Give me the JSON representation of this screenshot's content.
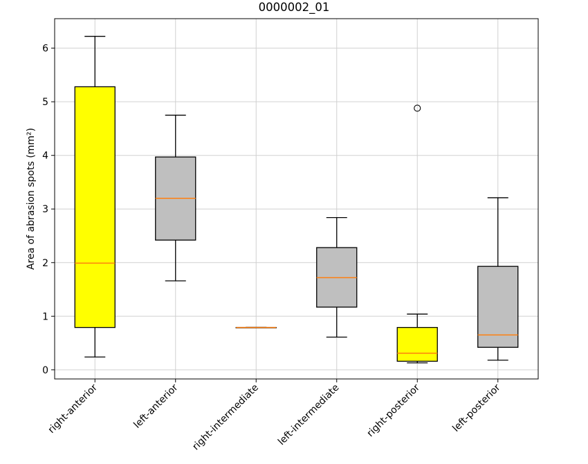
{
  "chart_data": {
    "type": "box",
    "title": "0000002_01",
    "xlabel": "",
    "ylabel": "Area of abrasion spots (mm²)",
    "ylim": [
      -0.17,
      6.55
    ],
    "yticks": [
      0,
      1,
      2,
      3,
      4,
      5,
      6
    ],
    "grid": true,
    "colors": {
      "yellow_box": "#ffff00",
      "gray_box": "#bfbfbf",
      "median": "#ff7f0e",
      "grid": "#d0d0d0"
    },
    "categories": [
      "right-anterior",
      "left-anterior",
      "right-intermediate",
      "left-intermediate",
      "right-posterior",
      "left-posterior"
    ],
    "boxes": [
      {
        "category": "right-anterior",
        "fill": "#ffff00",
        "whislo": 0.24,
        "q1": 0.79,
        "median": 1.99,
        "q3": 5.28,
        "whishi": 6.22,
        "outliers": []
      },
      {
        "category": "left-anterior",
        "fill": "#bfbfbf",
        "whislo": 1.66,
        "q1": 2.42,
        "median": 3.2,
        "q3": 3.97,
        "whishi": 4.75,
        "outliers": []
      },
      {
        "category": "right-intermediate",
        "fill": "#ffff00",
        "whislo": 0.79,
        "q1": 0.79,
        "median": 0.79,
        "q3": 0.79,
        "whishi": 0.79,
        "outliers": []
      },
      {
        "category": "left-intermediate",
        "fill": "#bfbfbf",
        "whislo": 0.61,
        "q1": 1.17,
        "median": 1.72,
        "q3": 2.28,
        "whishi": 2.84,
        "outliers": []
      },
      {
        "category": "right-posterior",
        "fill": "#ffff00",
        "whislo": 0.13,
        "q1": 0.16,
        "median": 0.31,
        "q3": 0.79,
        "whishi": 1.04,
        "outliers": [
          4.88
        ]
      },
      {
        "category": "left-posterior",
        "fill": "#bfbfbf",
        "whislo": 0.18,
        "q1": 0.42,
        "median": 0.65,
        "q3": 1.93,
        "whishi": 3.21,
        "outliers": []
      }
    ]
  }
}
